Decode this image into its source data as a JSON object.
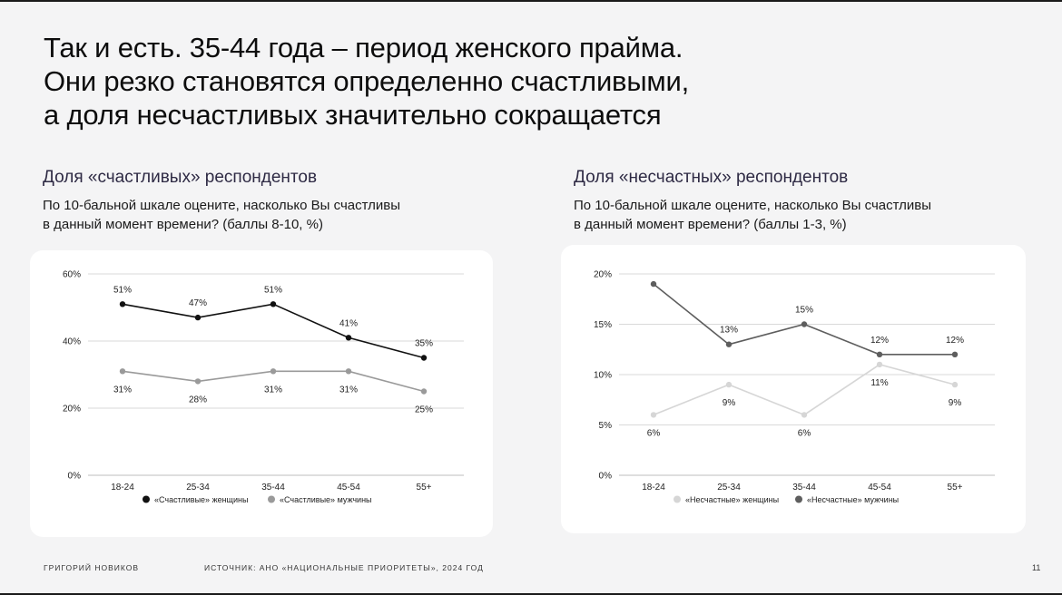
{
  "slide": {
    "title_lines": [
      "Так и есть. 35-44 года – период женского прайма.",
      "Они резко становятся определенно счастливыми,",
      "а доля несчастливых значительно сокращается"
    ],
    "author": "Григорий Новиков",
    "source": "Источник: АНО «Национальные приоритеты», 2024 год",
    "page_number": "11"
  },
  "panels": [
    {
      "title": "Доля «счастливых» респондентов",
      "subtitle_lines": [
        "По 10-бальной шкале оцените, насколько Вы счастливы",
        "в данный момент времени? (баллы 8-10, %)"
      ]
    },
    {
      "title": "Доля «несчастных» респондентов",
      "subtitle_lines": [
        "По 10-бальной шкале оцените, насколько Вы счастливы",
        "в данный момент времени? (баллы 1-3, %)"
      ]
    }
  ],
  "chart_data": [
    {
      "type": "line",
      "categories": [
        "18-24",
        "25-34",
        "35-44",
        "45-54",
        "55+"
      ],
      "ylim": [
        0,
        60
      ],
      "yticks": [
        0,
        20,
        40,
        60
      ],
      "ytick_labels": [
        "0%",
        "20%",
        "40%",
        "60%"
      ],
      "grid": true,
      "legend_position": "bottom",
      "series": [
        {
          "name": "«Счастливые» женщины",
          "values": [
            51,
            47,
            51,
            41,
            35
          ],
          "labels": [
            "51%",
            "47%",
            "51%",
            "41%",
            "35%"
          ],
          "color": "#111111",
          "label_side": "above"
        },
        {
          "name": "«Счастливые» мужчины",
          "values": [
            31,
            28,
            31,
            31,
            25
          ],
          "labels": [
            "31%",
            "28%",
            "31%",
            "31%",
            "25%"
          ],
          "color": "#9a9a9a",
          "label_side": "below"
        }
      ]
    },
    {
      "type": "line",
      "categories": [
        "18-24",
        "25-34",
        "35-44",
        "45-54",
        "55+"
      ],
      "ylim": [
        0,
        20
      ],
      "yticks": [
        0,
        5,
        10,
        15,
        20
      ],
      "ytick_labels": [
        "0%",
        "5%",
        "10%",
        "15%",
        "20%"
      ],
      "grid": true,
      "legend_position": "bottom",
      "series": [
        {
          "name": "«Несчастные» женщины",
          "values": [
            6,
            9,
            6,
            11,
            9
          ],
          "labels": [
            "6%",
            "9%",
            "6%",
            "11%",
            "9%"
          ],
          "color": "#d6d6d6",
          "label_side": "below"
        },
        {
          "name": "«Несчастные» мужчины",
          "values": [
            19,
            13,
            15,
            12,
            12
          ],
          "labels": [
            "",
            "13%",
            "15%",
            "12%",
            "12%"
          ],
          "color": "#5e5e5e",
          "label_side": "above"
        }
      ]
    }
  ]
}
